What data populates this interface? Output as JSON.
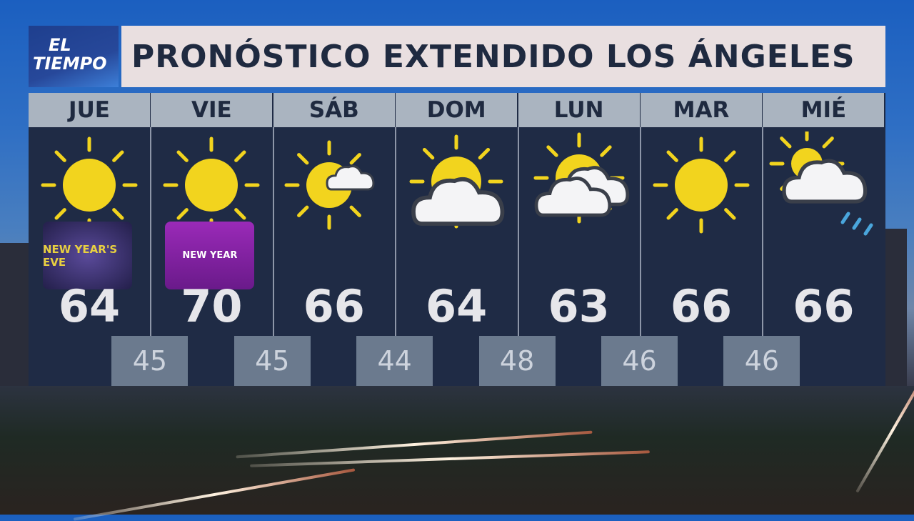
{
  "logo": {
    "line1": "EL",
    "line2": "TIEMPO"
  },
  "title": "PRONÓSTICO EXTENDIDO LOS ÁNGELES",
  "days": [
    {
      "label": "JUE",
      "high": "64",
      "icon": "sunny",
      "badge": "new-years-eve-graphic",
      "badge_text": "NEW YEAR'S EVE"
    },
    {
      "label": "VIE",
      "high": "70",
      "icon": "sunny",
      "badge": "new-year-baby-graphic",
      "badge_text": "NEW YEAR"
    },
    {
      "label": "SÁB",
      "high": "66",
      "icon": "sun-small-cloud"
    },
    {
      "label": "DOM",
      "high": "64",
      "icon": "partly-cloudy"
    },
    {
      "label": "LUN",
      "high": "63",
      "icon": "mostly-cloudy"
    },
    {
      "label": "MAR",
      "high": "66",
      "icon": "sunny"
    },
    {
      "label": "MIÉ",
      "high": "66",
      "icon": "cloud-sun-showers"
    }
  ],
  "lows": [
    "45",
    "45",
    "44",
    "48",
    "46",
    "46"
  ],
  "colors": {
    "sun": "#f2d41e",
    "board": "#1f2b45",
    "day_header": "#aab4c0",
    "low_box": "#6b7a8e",
    "title_bg": "#e9dfe0",
    "rain": "#4aa6dc"
  }
}
